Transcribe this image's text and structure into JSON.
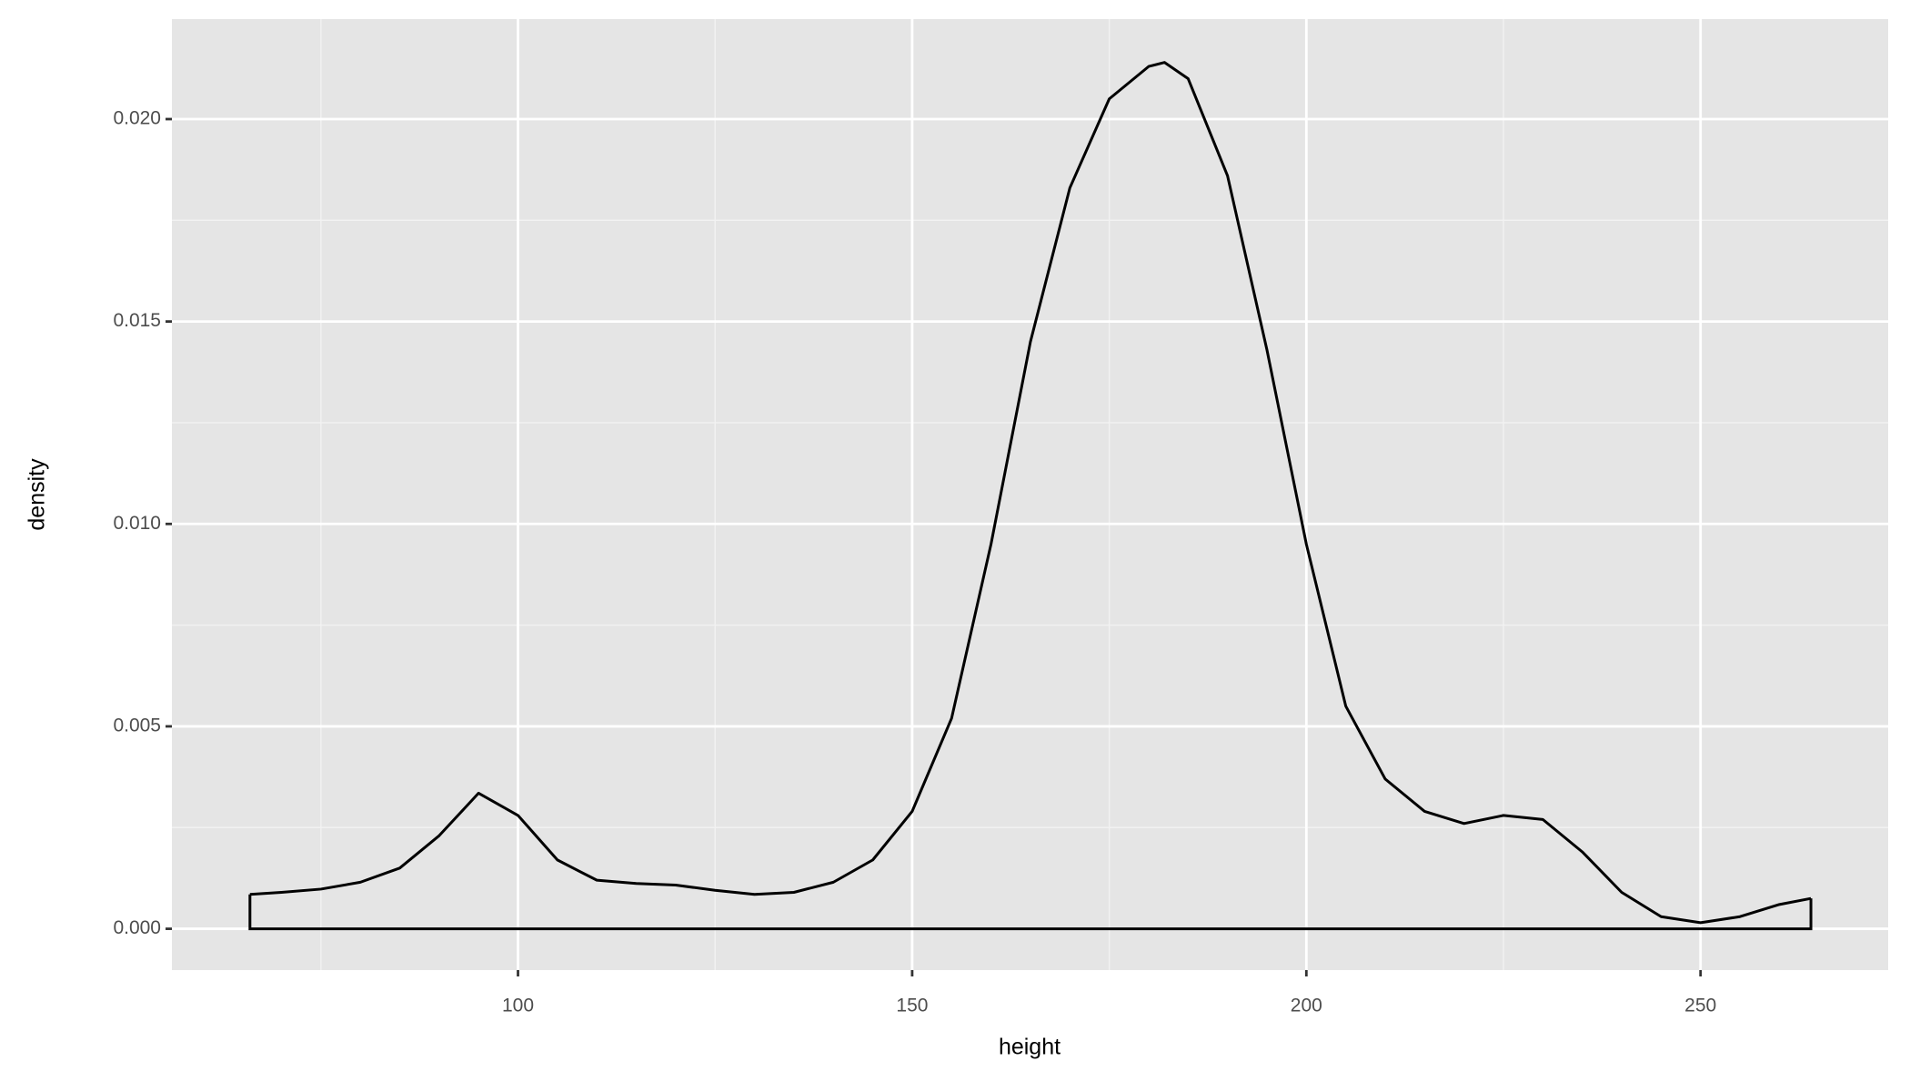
{
  "chart_data": {
    "type": "density",
    "x_label": "height",
    "y_label": "density",
    "x": [
      66,
      70,
      75,
      80,
      85,
      90,
      95,
      100,
      105,
      110,
      115,
      120,
      125,
      130,
      135,
      140,
      145,
      150,
      155,
      160,
      165,
      170,
      175,
      180,
      182,
      185,
      190,
      195,
      200,
      205,
      210,
      215,
      220,
      225,
      230,
      235,
      240,
      245,
      250,
      255,
      260,
      264
    ],
    "values": [
      0.00085,
      0.0009,
      0.00098,
      0.00115,
      0.0015,
      0.0023,
      0.00335,
      0.0028,
      0.0017,
      0.0012,
      0.00112,
      0.00108,
      0.00095,
      0.00085,
      0.0009,
      0.00115,
      0.0017,
      0.0029,
      0.0052,
      0.0095,
      0.0145,
      0.0183,
      0.0205,
      0.0213,
      0.0214,
      0.021,
      0.0186,
      0.0143,
      0.0095,
      0.0055,
      0.0037,
      0.0029,
      0.0026,
      0.0028,
      0.0027,
      0.0019,
      0.0009,
      0.0003,
      0.00015,
      0.0003,
      0.0006,
      0.00075
    ],
    "color": "#000000",
    "xlim": [
      56.1,
      273.8
    ],
    "ylim": [
      -0.00102,
      0.02247
    ],
    "xticks": [
      100,
      150,
      200,
      250
    ],
    "yticks": [
      {
        "value": 0,
        "label": "0.000"
      },
      {
        "value": 0.005,
        "label": "0.005"
      },
      {
        "value": 0.01,
        "label": "0.010"
      },
      {
        "value": 0.015,
        "label": "0.015"
      },
      {
        "value": 0.02,
        "label": "0.020"
      }
    ],
    "xminor": [
      75,
      125,
      175,
      225
    ],
    "yminor": [
      0.0025,
      0.0075,
      0.0125,
      0.0175
    ],
    "grid": true
  }
}
